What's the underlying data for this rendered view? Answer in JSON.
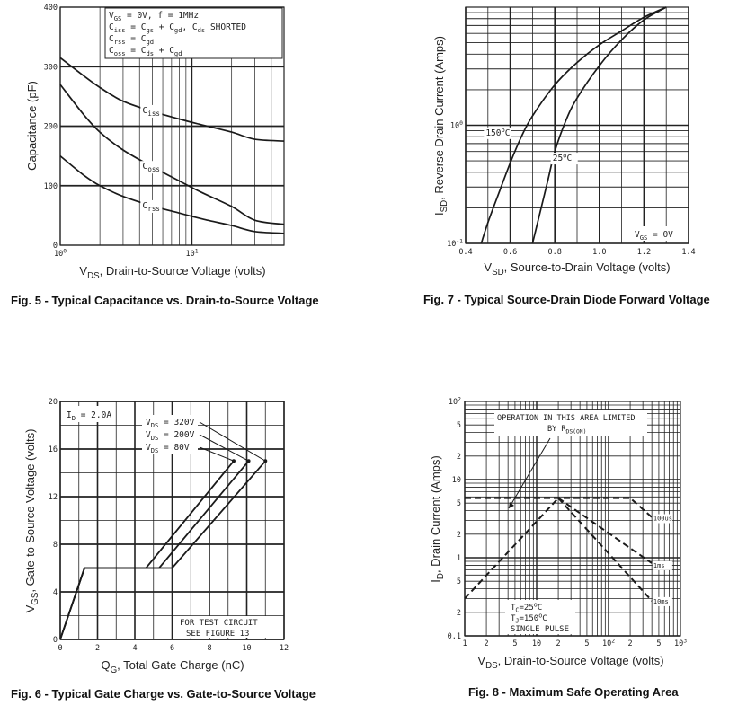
{
  "colors": {
    "line": "#1a1a1a",
    "grid": "#222222",
    "text": "#111111"
  },
  "captions": {
    "fig5": "Fig. 5 - Typical Capacitance vs. Drain-to-Source Voltage",
    "fig7": "Fig. 7 - Typical Source-Drain Diode Forward Voltage",
    "fig6": "Fig. 6 - Typical Gate Charge vs. Gate-to-Source Voltage",
    "fig8": "Fig. 8 - Maximum Safe Operating Area"
  },
  "chart_data": [
    {
      "id": "fig5",
      "type": "line",
      "title": "Fig. 5 - Typical Capacitance vs. Drain-to-Source Voltage",
      "xlabel": "V_DS, Drain-to-Source Voltage (volts)",
      "ylabel": "Capacitance (pF)",
      "xscale": "log",
      "xlim": [
        1,
        50
      ],
      "ylim": [
        0,
        400
      ],
      "xticks": [
        {
          "v": 1,
          "b": "10",
          "e": "0"
        },
        {
          "v": 10,
          "b": "10",
          "e": "1"
        }
      ],
      "yticks": [
        {
          "v": 0,
          "t": "0"
        },
        {
          "v": 100,
          "t": "100"
        },
        {
          "v": 200,
          "t": "200"
        },
        {
          "v": 300,
          "t": "300"
        },
        {
          "v": 400,
          "t": "400"
        }
      ],
      "legend": [
        "VGS = 0V, f = 1MHz",
        "Ciss = Cgs + Cgd, Cds SHORTED",
        "Crss = Cgd",
        "Coss = Cds + Cgd"
      ],
      "series": [
        {
          "name": "Ciss",
          "x": [
            1,
            1.5,
            2,
            3,
            5,
            8,
            12,
            20,
            30,
            50
          ],
          "y": [
            315,
            285,
            265,
            242,
            225,
            212,
            202,
            190,
            178,
            175
          ]
        },
        {
          "name": "Coss",
          "x": [
            1,
            1.5,
            2,
            3,
            5,
            8,
            12,
            20,
            30,
            50
          ],
          "y": [
            270,
            220,
            190,
            160,
            132,
            108,
            88,
            65,
            42,
            35
          ]
        },
        {
          "name": "Crss",
          "x": [
            1,
            1.5,
            2,
            3,
            5,
            8,
            12,
            20,
            30,
            50
          ],
          "y": [
            150,
            118,
            100,
            82,
            66,
            54,
            44,
            33,
            23,
            20
          ]
        }
      ],
      "curve_labels": [
        {
          "name": "Ciss",
          "x": 4.2,
          "y": 222
        },
        {
          "name": "Coss",
          "x": 4.2,
          "y": 128
        },
        {
          "name": "Crss",
          "x": 4.2,
          "y": 62
        }
      ]
    },
    {
      "id": "fig7",
      "type": "line",
      "title": "Fig. 7 - Typical Source-Drain Diode Forward Voltage",
      "xlabel": "V_SD, Source-to-Drain Voltage (volts)",
      "ylabel": "I_SD, Reverse Drain Current (Amps)",
      "yscale": "log",
      "xlim": [
        0.4,
        1.4
      ],
      "ylim": [
        0.1,
        10
      ],
      "xticks": [
        {
          "v": 0.4,
          "t": "0.4"
        },
        {
          "v": 0.6,
          "t": "0.6"
        },
        {
          "v": 0.8,
          "t": "0.8"
        },
        {
          "v": 1.0,
          "t": "1.0"
        },
        {
          "v": 1.2,
          "t": "1.2"
        },
        {
          "v": 1.4,
          "t": "1.4"
        }
      ],
      "yticks": [
        {
          "v": 0.1,
          "b": "10",
          "e": "-1"
        },
        {
          "v": 1,
          "b": "10",
          "e": "0"
        }
      ],
      "annotation": "VGS = 0V",
      "series": [
        {
          "name": "150°C",
          "x": [
            0.47,
            0.5,
            0.55,
            0.6,
            0.65,
            0.7,
            0.8,
            0.9,
            1.0,
            1.1,
            1.2,
            1.3
          ],
          "y": [
            0.1,
            0.15,
            0.27,
            0.48,
            0.8,
            1.2,
            2.2,
            3.4,
            4.8,
            6.3,
            8.2,
            10
          ]
        },
        {
          "name": "25°C",
          "x": [
            0.7,
            0.73,
            0.77,
            0.8,
            0.85,
            0.9,
            1.0,
            1.1,
            1.2,
            1.3
          ],
          "y": [
            0.1,
            0.17,
            0.35,
            0.6,
            1.1,
            1.7,
            3.2,
            5.3,
            7.8,
            10
          ]
        }
      ],
      "curve_labels": [
        {
          "name": "150°C",
          "x": 0.49,
          "y": 0.82
        },
        {
          "name": "25°C",
          "x": 0.79,
          "y": 0.5
        }
      ]
    },
    {
      "id": "fig6",
      "type": "line",
      "title": "Fig. 6 - Typical Gate Charge vs. Gate-to-Source Voltage",
      "xlabel": "Q_G, Total Gate Charge (nC)",
      "ylabel": "V_GS, Gate-to-Source Voltage (volts)",
      "xlim": [
        0,
        12
      ],
      "ylim": [
        0,
        20
      ],
      "xticks": [
        {
          "v": 0,
          "t": "0"
        },
        {
          "v": 2,
          "t": "2"
        },
        {
          "v": 4,
          "t": "4"
        },
        {
          "v": 6,
          "t": "6"
        },
        {
          "v": 8,
          "t": "8"
        },
        {
          "v": 10,
          "t": "10"
        },
        {
          "v": 12,
          "t": "12"
        }
      ],
      "yticks": [
        {
          "v": 0,
          "t": "0"
        },
        {
          "v": 4,
          "t": "4"
        },
        {
          "v": 8,
          "t": "8"
        },
        {
          "v": 12,
          "t": "12"
        },
        {
          "v": 16,
          "t": "16"
        },
        {
          "v": 20,
          "t": "20"
        }
      ],
      "condition": "ID = 2.0A",
      "note": [
        "FOR TEST CIRCUIT",
        "SEE FIGURE 13"
      ],
      "legend": [
        "VDS = 320V",
        "VDS = 200V",
        "VDS = 80V"
      ],
      "series": [
        {
          "name": "VDS = 80V",
          "x": [
            0,
            1.3,
            4.6,
            9.3
          ],
          "y": [
            0,
            6,
            6,
            15
          ]
        },
        {
          "name": "VDS = 200V",
          "x": [
            0,
            1.3,
            5.3,
            10.1
          ],
          "y": [
            0,
            6,
            6,
            15
          ]
        },
        {
          "name": "VDS = 320V",
          "x": [
            0,
            1.3,
            6.0,
            11.0
          ],
          "y": [
            0,
            6,
            6,
            15
          ]
        }
      ]
    },
    {
      "id": "fig8",
      "type": "line",
      "title": "Fig. 8 - Maximum Safe Operating Area",
      "xlabel": "V_DS, Drain-to-Source Voltage (volts)",
      "ylabel": "I_D, Drain Current (Amps)",
      "xscale": "log",
      "yscale": "log",
      "xlim": [
        1,
        1000
      ],
      "ylim": [
        0.1,
        100
      ],
      "xticks": [
        {
          "v": 1,
          "t": "1"
        },
        {
          "v": 2,
          "t": "2"
        },
        {
          "v": 5,
          "t": "5"
        },
        {
          "v": 10,
          "b": "10",
          "e": ""
        },
        {
          "v": 20,
          "t": "2"
        },
        {
          "v": 50,
          "t": "5"
        },
        {
          "v": 100,
          "b": "10",
          "e": "2"
        },
        {
          "v": 200,
          "t": "2"
        },
        {
          "v": 500,
          "t": "5"
        },
        {
          "v": 1000,
          "b": "10",
          "e": "3"
        }
      ],
      "yticks": [
        {
          "v": 0.1,
          "t": "0.1"
        },
        {
          "v": 0.2,
          "t": "2"
        },
        {
          "v": 0.5,
          "t": "5"
        },
        {
          "v": 1,
          "t": "1"
        },
        {
          "v": 2,
          "t": "2"
        },
        {
          "v": 5,
          "t": "5"
        },
        {
          "v": 10,
          "t": "10"
        },
        {
          "v": 20,
          "t": "2"
        },
        {
          "v": 50,
          "t": "5"
        },
        {
          "v": 100,
          "b": "10",
          "e": "2"
        }
      ],
      "annotations": [
        "OPERATION IN THIS AREA LIMITED",
        "BY RDS(ON)",
        "TC = 25°C",
        "TJ = 150°C",
        "SINGLE PULSE"
      ],
      "series": [
        {
          "name": "RDS(ON) limit",
          "x": [
            1,
            20
          ],
          "y": [
            0.3,
            5.8
          ]
        },
        {
          "name": "100us",
          "x": [
            1,
            200,
            400
          ],
          "y": [
            5.8,
            5.8,
            3.3
          ]
        },
        {
          "name": "1ms",
          "x": [
            20,
            400
          ],
          "y": [
            5.8,
            0.85
          ]
        },
        {
          "name": "10ms",
          "x": [
            20,
            400
          ],
          "y": [
            5.8,
            0.28
          ]
        }
      ],
      "curve_labels": [
        {
          "name": "100us",
          "x": 420,
          "y": 3.0
        },
        {
          "name": "1ms",
          "x": 420,
          "y": 0.75
        },
        {
          "name": "10ms",
          "x": 420,
          "y": 0.26
        }
      ]
    }
  ]
}
